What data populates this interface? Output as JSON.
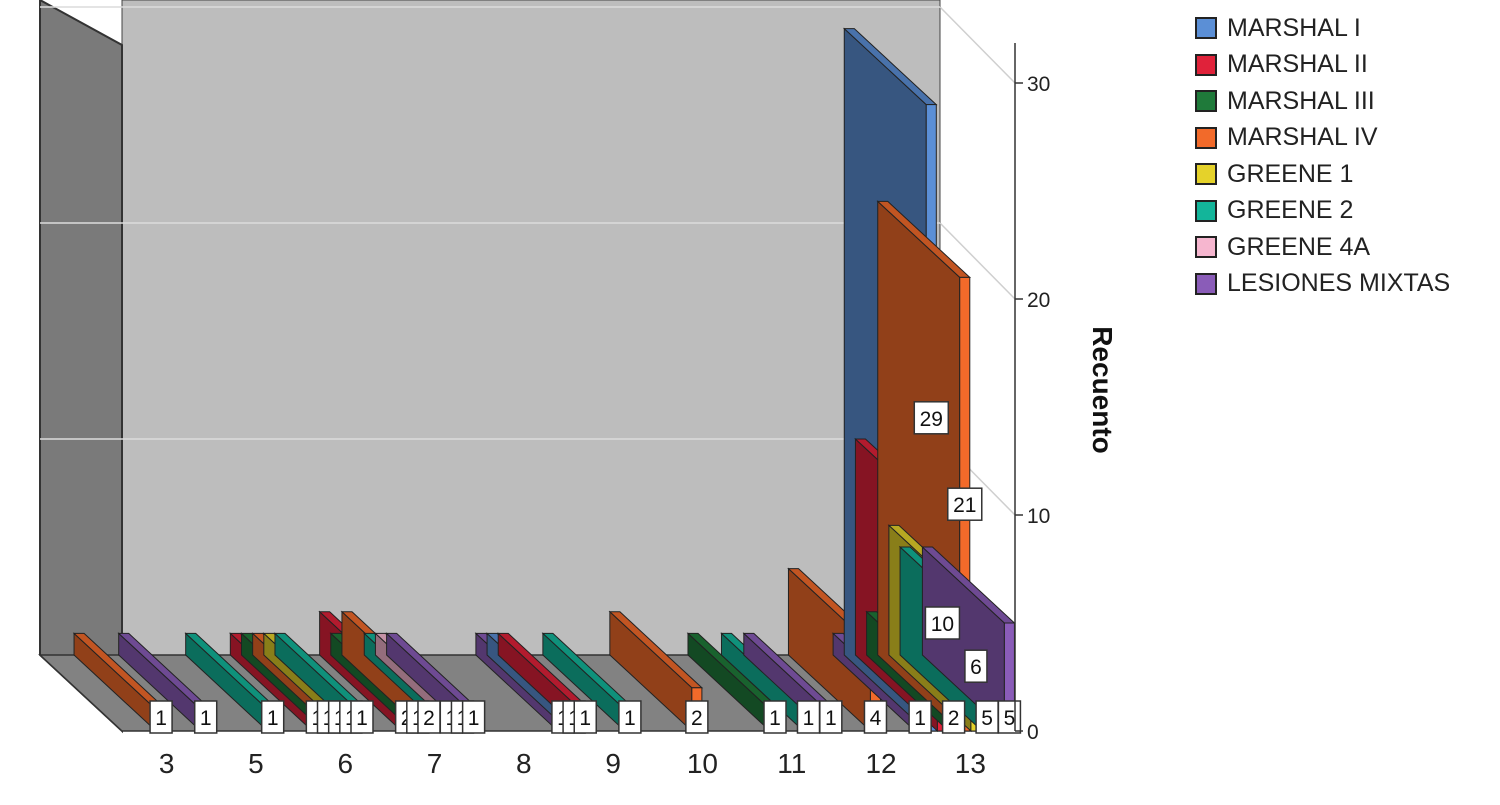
{
  "chart_data": {
    "type": "bar",
    "ylabel": "Recuento",
    "ylim": [
      0,
      30
    ],
    "yticks": [
      0,
      10,
      20,
      30
    ],
    "categories": [
      "3",
      "5",
      "6",
      "7",
      "8",
      "9",
      "10",
      "11",
      "12",
      "13"
    ],
    "series": [
      {
        "name": "MARSHAL I",
        "color": "#5b8fd6",
        "values": [
          0,
          0,
          0,
          0,
          0,
          1,
          0,
          0,
          0,
          29
        ]
      },
      {
        "name": "MARSHAL II",
        "color": "#e0223a",
        "values": [
          0,
          0,
          1,
          2,
          0,
          1,
          0,
          0,
          0,
          10
        ]
      },
      {
        "name": "MARSHAL III",
        "color": "#1f7a3a",
        "values": [
          0,
          0,
          1,
          1,
          0,
          0,
          0,
          1,
          0,
          2
        ]
      },
      {
        "name": "MARSHAL IV",
        "color": "#f26a2a",
        "values": [
          1,
          0,
          1,
          2,
          0,
          0,
          2,
          0,
          4,
          21
        ]
      },
      {
        "name": "GREENE 1",
        "color": "#e5d22a",
        "values": [
          0,
          0,
          1,
          0,
          0,
          0,
          0,
          0,
          0,
          6
        ]
      },
      {
        "name": "GREENE 2",
        "color": "#13b59a",
        "values": [
          0,
          1,
          1,
          1,
          0,
          1,
          0,
          1,
          0,
          5
        ]
      },
      {
        "name": "GREENE 4A",
        "color": "#f6b6cf",
        "values": [
          0,
          0,
          0,
          1,
          0,
          0,
          0,
          0,
          0,
          0
        ]
      },
      {
        "name": "LESIONES MIXTAS",
        "color": "#8a5cb8",
        "values": [
          1,
          0,
          0,
          1,
          1,
          0,
          0,
          1,
          1,
          5
        ]
      }
    ]
  }
}
